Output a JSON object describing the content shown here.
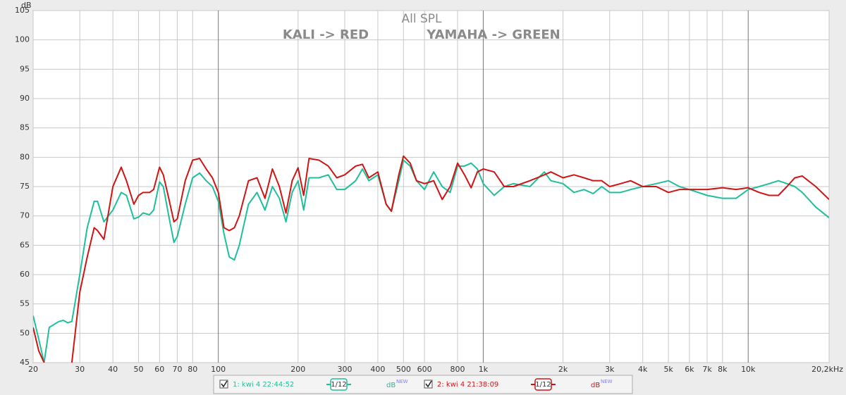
{
  "chart_data": {
    "type": "line",
    "title": "All SPL",
    "subtitles": [
      "KALI -> RED",
      "YAMAHA -> GREEN"
    ],
    "ylabel": "dB",
    "log_x": true,
    "grid": true,
    "xlim": [
      20,
      20200
    ],
    "ylim": [
      45,
      105
    ],
    "yticks": [
      45,
      50,
      55,
      60,
      65,
      70,
      75,
      80,
      85,
      90,
      95,
      100,
      105
    ],
    "xticks": [
      20,
      30,
      40,
      50,
      60,
      70,
      80,
      100,
      200,
      300,
      400,
      500,
      600,
      800,
      {
        "value": 1000,
        "label": "1k"
      },
      {
        "value": 2000,
        "label": "2k"
      },
      {
        "value": 3000,
        "label": "3k"
      },
      {
        "value": 4000,
        "label": "4k"
      },
      {
        "value": 5000,
        "label": "5k"
      },
      {
        "value": 6000,
        "label": "6k"
      },
      {
        "value": 7000,
        "label": "7k"
      },
      {
        "value": 8000,
        "label": "8k"
      },
      {
        "value": 10000,
        "label": "10k"
      },
      {
        "value": 20200,
        "label": "20,2kHz"
      }
    ],
    "x": [
      20,
      21,
      22,
      23,
      25,
      26,
      27,
      28,
      30,
      32,
      34,
      35,
      37,
      40,
      43,
      45,
      48,
      50,
      52,
      55,
      57,
      60,
      62,
      65,
      68,
      70,
      75,
      80,
      85,
      90,
      95,
      100,
      105,
      110,
      115,
      120,
      130,
      140,
      150,
      160,
      170,
      180,
      190,
      200,
      210,
      220,
      240,
      260,
      280,
      300,
      330,
      350,
      370,
      400,
      430,
      450,
      480,
      500,
      530,
      560,
      600,
      650,
      700,
      750,
      800,
      850,
      900,
      950,
      1000,
      1100,
      1200,
      1300,
      1500,
      1700,
      1800,
      2000,
      2200,
      2400,
      2600,
      2800,
      3000,
      3300,
      3600,
      4000,
      4500,
      5000,
      5500,
      6000,
      7000,
      8000,
      9000,
      10000,
      11000,
      12000,
      13000,
      14000,
      15000,
      16000,
      18000,
      20200
    ],
    "smoothing": "1/12",
    "unit": "dB",
    "unit_tag": "NEW",
    "series": [
      {
        "name": "1: kwi 4 22:44:52",
        "color": "#1fbf9c",
        "values": [
          53,
          49,
          45,
          51,
          52,
          52.2,
          51.8,
          52,
          60,
          68,
          72.5,
          72.5,
          69,
          71,
          74,
          73.5,
          69.5,
          69.8,
          70.5,
          70.2,
          71,
          75.8,
          75,
          70,
          65.5,
          66.5,
          72,
          76.5,
          77.3,
          76,
          75,
          72.5,
          67,
          63,
          62.5,
          65,
          72,
          74,
          71,
          75,
          73,
          69,
          74,
          76,
          71,
          76.5,
          76.5,
          77,
          74.5,
          74.5,
          76,
          78,
          76,
          77,
          72,
          70.8,
          76,
          79.5,
          78.5,
          76,
          74.5,
          77.5,
          75,
          74,
          78.5,
          78.5,
          79,
          78,
          75.5,
          73.5,
          75,
          75.5,
          75,
          77.5,
          76,
          75.5,
          74,
          74.5,
          73.8,
          75,
          74,
          74,
          74.5,
          75,
          75.5,
          76,
          75,
          74.5,
          73.5,
          73,
          73,
          74.5,
          75,
          75.5,
          76,
          75.5,
          75,
          74,
          71.5,
          69.7
        ]
      },
      {
        "name": "2: kwi 4 21:38:09",
        "color": "#d01414",
        "values": [
          51,
          47,
          45,
          null,
          null,
          null,
          null,
          45,
          57,
          63,
          68,
          67.5,
          66,
          75,
          78.3,
          76,
          72,
          73.5,
          74,
          74,
          74.5,
          78.3,
          77,
          73,
          69,
          69.5,
          76,
          79.5,
          79.8,
          78,
          76.5,
          74,
          68,
          67.5,
          68,
          70,
          76,
          76.5,
          73,
          78,
          75,
          70.5,
          76,
          78.2,
          73.5,
          79.8,
          79.5,
          78.5,
          76.5,
          77,
          78.5,
          78.8,
          76.5,
          77.5,
          72,
          70.8,
          77,
          80.2,
          79,
          76,
          75.5,
          76,
          72.8,
          75,
          79,
          77,
          74.8,
          77.5,
          78,
          77.5,
          75,
          75,
          76,
          77,
          77.5,
          76.5,
          77,
          76.5,
          76,
          76,
          75,
          75.5,
          76,
          75,
          75,
          74,
          74.5,
          74.5,
          74.5,
          74.8,
          74.5,
          74.8,
          74,
          73.5,
          73.5,
          75,
          76.5,
          76.8,
          75,
          72.8
        ]
      }
    ]
  }
}
